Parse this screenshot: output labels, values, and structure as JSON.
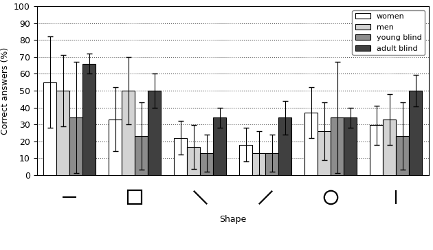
{
  "chart_data": {
    "type": "bar",
    "y_label": "Correct answers (%)",
    "x_label": "Shape",
    "categories": [
      null,
      null,
      null,
      null,
      null,
      null
    ],
    "series": [
      {
        "name": "women",
        "color": "#ffffff",
        "values": [
          55,
          33,
          22,
          18,
          37,
          29.5
        ],
        "errors": [
          27,
          19,
          10,
          10,
          15,
          11.5
        ]
      },
      {
        "name": "men",
        "color": "#d3d3d3",
        "values": [
          50,
          50,
          16.5,
          13,
          26,
          33
        ],
        "errors": [
          21,
          20,
          13,
          13,
          17,
          15
        ]
      },
      {
        "name": "young blind",
        "color": "#8c8c8c",
        "values": [
          34,
          23,
          13,
          13,
          34,
          23
        ],
        "errors": [
          33,
          20,
          11,
          11,
          33,
          20
        ]
      },
      {
        "name": "adult blind",
        "color": "#404040",
        "values": [
          66,
          50,
          34,
          34,
          34,
          50
        ],
        "errors": [
          6,
          10,
          6,
          10,
          6,
          9.5
        ]
      }
    ],
    "ylim": [
      0,
      100
    ],
    "yticks": [
      0,
      10,
      20,
      30,
      40,
      50,
      60,
      70,
      80,
      90,
      100
    ],
    "grid": true,
    "legend": "upper right"
  }
}
